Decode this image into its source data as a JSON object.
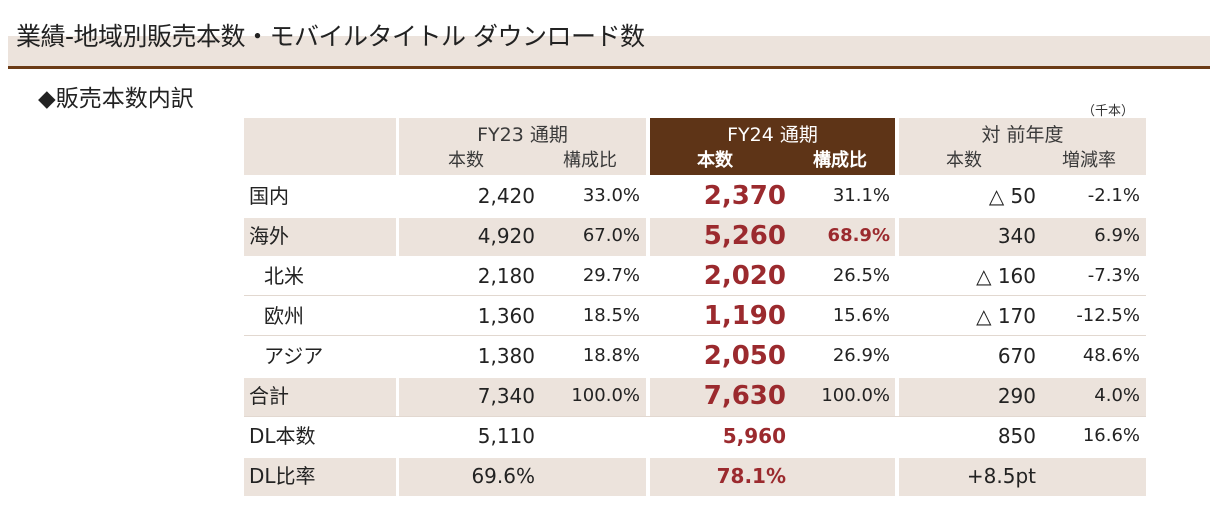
{
  "page_title": "業績-地域別販売本数・モバイルタイトル ダウンロード数",
  "section_title": "◆販売本数内訳",
  "unit_note": "（千本）",
  "header": {
    "fy23": "FY23 通期",
    "fy24": "FY24 通期",
    "yoy": "対 前年度",
    "units": "本数",
    "ratio": "構成比",
    "change": "増減率"
  },
  "rows": [
    {
      "label": "国内",
      "fy23_units": "2,420",
      "fy23_ratio": "33.0%",
      "fy24_units": "2,370",
      "fy24_ratio": "31.1%",
      "yoy_units": "△ 50",
      "yoy_rate": "-2.1%"
    },
    {
      "label": "海外",
      "fy23_units": "4,920",
      "fy23_ratio": "67.0%",
      "fy24_units": "5,260",
      "fy24_ratio": "68.9%",
      "yoy_units": "340",
      "yoy_rate": "6.9%"
    },
    {
      "label": "北米",
      "fy23_units": "2,180",
      "fy23_ratio": "29.7%",
      "fy24_units": "2,020",
      "fy24_ratio": "26.5%",
      "yoy_units": "△ 160",
      "yoy_rate": "-7.3%"
    },
    {
      "label": "欧州",
      "fy23_units": "1,360",
      "fy23_ratio": "18.5%",
      "fy24_units": "1,190",
      "fy24_ratio": "15.6%",
      "yoy_units": "△ 170",
      "yoy_rate": "-12.5%"
    },
    {
      "label": "アジア",
      "fy23_units": "1,380",
      "fy23_ratio": "18.8%",
      "fy24_units": "2,050",
      "fy24_ratio": "26.9%",
      "yoy_units": "670",
      "yoy_rate": "48.6%"
    },
    {
      "label": "合計",
      "fy23_units": "7,340",
      "fy23_ratio": "100.0%",
      "fy24_units": "7,630",
      "fy24_ratio": "100.0%",
      "yoy_units": "290",
      "yoy_rate": "4.0%"
    },
    {
      "label": "DL本数",
      "fy23_units": "5,110",
      "fy23_ratio": "",
      "fy24_units": "5,960",
      "fy24_ratio": "",
      "yoy_units": "850",
      "yoy_rate": "16.6%"
    },
    {
      "label": "DL比率",
      "fy23_units": "69.6%",
      "fy23_ratio": "",
      "fy24_units": "78.1%",
      "fy24_ratio": "",
      "yoy_units": "+8.5pt",
      "yoy_rate": ""
    }
  ]
}
